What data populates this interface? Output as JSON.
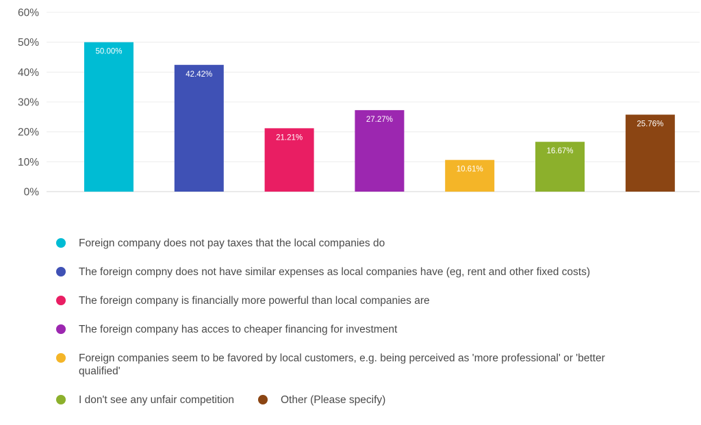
{
  "chart_data": {
    "type": "bar",
    "title": "",
    "xlabel": "",
    "ylabel": "",
    "ylim": [
      0,
      60
    ],
    "y_ticks": [
      "0%",
      "10%",
      "20%",
      "30%",
      "40%",
      "50%",
      "60%"
    ],
    "grid": true,
    "legend_position": "bottom",
    "categories": [
      "Foreign company does not pay taxes that the local companies do",
      "The foreign compny does not have similar expenses as local companies have (eg, rent and other fixed costs)",
      "The foreign company is financially more powerful than local companies are",
      "The foreign company has acces to cheaper financing for investment",
      "Foreign companies seem to be favored by local customers, e.g. being perceived as 'more professional' or 'better qualified'",
      "I don't see any unfair competition",
      "Other (Please specify)"
    ],
    "values": [
      50.0,
      42.42,
      21.21,
      27.27,
      10.61,
      16.67,
      25.76
    ],
    "data_labels": [
      "50.00%",
      "42.42%",
      "21.21%",
      "27.27%",
      "10.61%",
      "16.67%",
      "25.76%"
    ],
    "colors": [
      "#00bcd4",
      "#3f51b5",
      "#e91e63",
      "#9c27b0",
      "#f4b528",
      "#8cb02c",
      "#8b4513"
    ]
  }
}
